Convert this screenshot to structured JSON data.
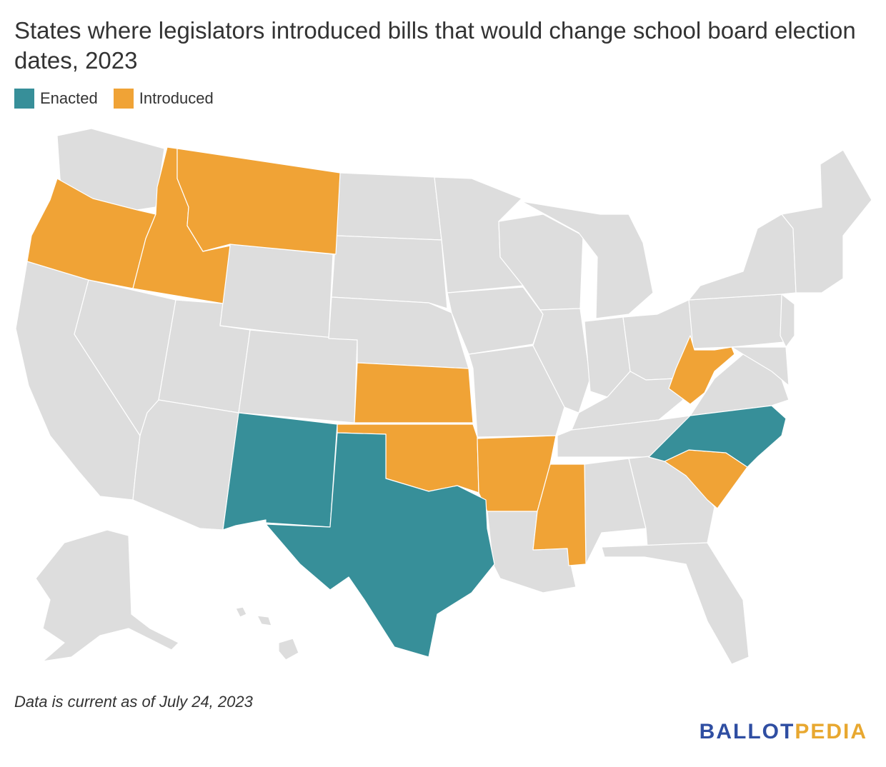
{
  "title": "States where legislators introduced bills that would change school board election dates, 2023",
  "legend": [
    {
      "label": "Enacted",
      "color": "#378f99"
    },
    {
      "label": "Introduced",
      "color": "#f0a336"
    }
  ],
  "colors": {
    "none": "#dddddd",
    "enacted": "#378f99",
    "introduced": "#f0a336"
  },
  "states": {
    "enacted": [
      "North Carolina",
      "New Mexico",
      "Texas"
    ],
    "introduced": [
      "Oregon",
      "Idaho",
      "Montana",
      "Kansas",
      "Oklahoma",
      "Arkansas",
      "Mississippi",
      "South Carolina",
      "West Virginia"
    ]
  },
  "footnote": "Data is current as of July 24, 2023",
  "logo": {
    "part1": "BALLOT",
    "part2": "PEDIA"
  }
}
